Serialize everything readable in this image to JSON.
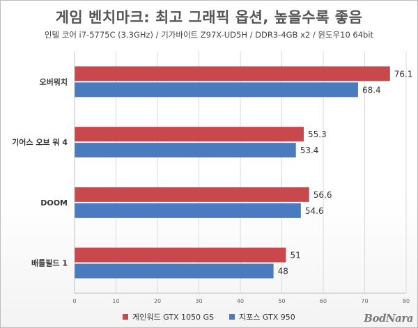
{
  "title": "게임 벤치마크: 최고 그래픽 옵션, 높을수록 좋음",
  "subtitle": "인텔 코어 i7-5775C (3.3GHz) / 기가바이트 Z97X-UD5H / DDR3-4GB x2 / 윈도우10 64bit",
  "watermark": "BodNara",
  "colors": {
    "series1": "#c9484b",
    "series2": "#4a7bbf",
    "grid": "#d9d9d9"
  },
  "chart_data": {
    "type": "bar",
    "orientation": "horizontal",
    "categories": [
      "오버워치",
      "기어스 오브 워 4",
      "DOOM",
      "배틀필드 1"
    ],
    "series": [
      {
        "name": "게인워드 GTX 1050 GS",
        "values": [
          76.1,
          55.3,
          56.6,
          51
        ],
        "labels": [
          "76.1",
          "55.3",
          "56.6",
          "51"
        ]
      },
      {
        "name": "지포스 GTX 950",
        "values": [
          68.4,
          53.4,
          54.6,
          48
        ],
        "labels": [
          "68.4",
          "53.4",
          "54.6",
          "48"
        ]
      }
    ],
    "xlim": [
      0,
      80
    ],
    "xticks": [
      0,
      10,
      20,
      30,
      40,
      50,
      60,
      70,
      80
    ],
    "grid": true,
    "legend": "bottom"
  }
}
